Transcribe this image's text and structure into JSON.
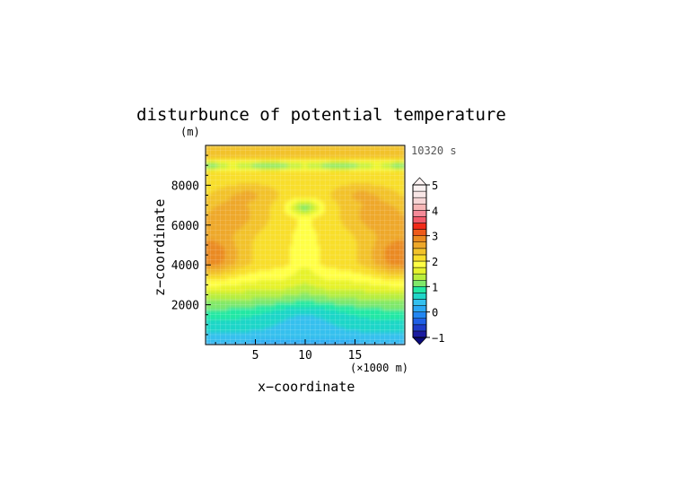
{
  "chart_data": {
    "type": "heatmap",
    "title": "disturbunce of potential temperature",
    "y_unit_label": "(m)",
    "time_label": "10320 s",
    "xlabel": "x−coordinate",
    "ylabel": "z−coordinate",
    "x_unit_label": "(×1000 m)",
    "xlim": [
      0,
      20
    ],
    "ylim": [
      0,
      10000
    ],
    "x_ticks": [
      5,
      10,
      15
    ],
    "x_tick_labels": [
      "5",
      "10",
      "15"
    ],
    "y_ticks": [
      2000,
      4000,
      6000,
      8000
    ],
    "y_tick_labels": [
      "2000",
      "4000",
      "6000",
      "8000"
    ],
    "colorbar": {
      "min": -1,
      "max": 5,
      "step": 0.25,
      "tick_values": [
        -1,
        0,
        1,
        2,
        3,
        4,
        5
      ],
      "tick_labels": [
        "−1",
        "0",
        "1",
        "2",
        "3",
        "4",
        "5"
      ],
      "colors": [
        "#1b1ba0",
        "#1e3cc8",
        "#1f60e6",
        "#2286f2",
        "#2ba8f4",
        "#34c0ee",
        "#1fd6c8",
        "#22e8a4",
        "#7fe86a",
        "#b8ee3c",
        "#e6f22c",
        "#ffff44",
        "#f8de2a",
        "#f2c22a",
        "#eea82a",
        "#ea8a20",
        "#ee5a1a",
        "#f22a18",
        "#f25a6a",
        "#f48a98",
        "#f6b6b6",
        "#f6d6d6",
        "#f8e6e6",
        "#fbf2f2"
      ]
    },
    "levels_note_values": {
      "surface_layer_max_z": 600,
      "cyan_band_top_z": 2800,
      "yellow_core": [
        2,
        2.25
      ],
      "orange_max": 2.75
    }
  }
}
